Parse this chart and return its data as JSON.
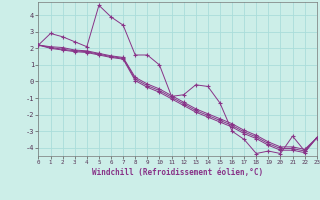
{
  "xlabel": "Windchill (Refroidissement éolien,°C)",
  "bg_color": "#cceee8",
  "grid_color": "#aaddda",
  "line_color": "#883388",
  "xlim": [
    0,
    23
  ],
  "ylim": [
    -4.5,
    4.8
  ],
  "xticks": [
    0,
    1,
    2,
    3,
    4,
    5,
    6,
    7,
    8,
    9,
    10,
    11,
    12,
    13,
    14,
    15,
    16,
    17,
    18,
    19,
    20,
    21,
    22,
    23
  ],
  "yticks": [
    -4,
    -3,
    -2,
    -1,
    0,
    1,
    2,
    3,
    4
  ],
  "series": [
    [
      2.2,
      2.9,
      2.7,
      2.4,
      2.1,
      4.6,
      3.9,
      3.4,
      1.6,
      1.6,
      1.0,
      -0.9,
      -0.8,
      -0.2,
      -0.3,
      -1.3,
      -3.0,
      -3.5,
      -4.35,
      -4.2,
      -4.35,
      -3.3,
      -4.2,
      -3.4
    ],
    [
      2.2,
      2.1,
      2.05,
      1.9,
      1.85,
      1.7,
      1.55,
      1.45,
      0.25,
      -0.15,
      -0.45,
      -0.85,
      -1.25,
      -1.65,
      -1.95,
      -2.25,
      -2.55,
      -2.95,
      -3.25,
      -3.65,
      -3.95,
      -3.95,
      -4.1,
      -3.4
    ],
    [
      2.2,
      2.05,
      1.95,
      1.85,
      1.8,
      1.65,
      1.5,
      1.4,
      0.15,
      -0.25,
      -0.55,
      -0.95,
      -1.35,
      -1.75,
      -2.05,
      -2.35,
      -2.65,
      -3.05,
      -3.35,
      -3.75,
      -4.05,
      -4.05,
      -4.2,
      -3.4
    ],
    [
      2.2,
      2.0,
      1.9,
      1.8,
      1.75,
      1.6,
      1.45,
      1.35,
      0.05,
      -0.35,
      -0.65,
      -1.05,
      -1.45,
      -1.85,
      -2.15,
      -2.45,
      -2.75,
      -3.15,
      -3.45,
      -3.85,
      -4.15,
      -4.15,
      -4.3,
      -3.4
    ]
  ]
}
